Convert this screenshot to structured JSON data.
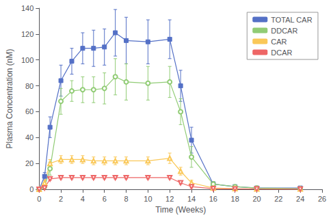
{
  "chart_data": {
    "type": "line",
    "xlabel": "Time (Weeks)",
    "ylabel": "Plasma Concentration (nM)",
    "xlim": [
      0,
      26
    ],
    "ylim": [
      0,
      140
    ],
    "xticks": [
      0,
      2,
      4,
      6,
      8,
      10,
      12,
      14,
      16,
      18,
      20,
      22,
      24,
      26
    ],
    "yticks": [
      0,
      20,
      40,
      60,
      80,
      100,
      120,
      140
    ],
    "grid": false,
    "legend": "upper right",
    "series": [
      {
        "name": "TOTAL CAR",
        "marker": "square",
        "line_style": "solid",
        "x": [
          0,
          0.5,
          1,
          2,
          3,
          4,
          5,
          6,
          7,
          8,
          10,
          12,
          13,
          14,
          16,
          18,
          20,
          24
        ],
        "values": [
          0,
          10,
          48,
          84,
          99,
          109,
          109,
          110,
          121,
          115,
          114,
          116,
          80,
          38,
          4,
          2,
          1,
          1
        ],
        "yerr": [
          0,
          3,
          8,
          12,
          10,
          12,
          14,
          14,
          18,
          18,
          17,
          15,
          12,
          10,
          2,
          1,
          1,
          0.5
        ]
      },
      {
        "name": "DDCAR",
        "marker": "open circle",
        "line_style": "solid",
        "x": [
          0,
          0.5,
          1,
          2,
          3,
          4,
          5,
          6,
          7,
          8,
          10,
          12,
          13,
          14,
          16,
          18,
          20,
          24
        ],
        "values": [
          0,
          2,
          16,
          68,
          76,
          77,
          77,
          78,
          87,
          83,
          82,
          83,
          60,
          25,
          4,
          2,
          1,
          0.5
        ],
        "yerr": [
          0,
          1,
          5,
          10,
          8,
          10,
          10,
          12,
          14,
          14,
          13,
          12,
          10,
          8,
          2,
          1,
          0.5,
          0.3
        ]
      },
      {
        "name": "CAR",
        "marker": "open triangle",
        "line_style": "solid",
        "x": [
          0,
          0.5,
          1,
          2,
          3,
          4,
          5,
          6,
          7,
          8,
          10,
          12,
          13,
          14,
          16,
          18,
          20,
          24
        ],
        "values": [
          0,
          5,
          20,
          23,
          23,
          23,
          22,
          22,
          22,
          22,
          22,
          24,
          14,
          5,
          1,
          0.5,
          0.3,
          0.2
        ],
        "yerr": [
          0,
          2,
          3,
          3,
          3,
          3,
          3,
          3,
          3,
          3,
          3,
          4,
          3,
          2,
          0.5,
          0.3,
          0.2,
          0.1
        ]
      },
      {
        "name": "DCAR",
        "marker": "open triangle-down",
        "line_style": "solid",
        "x": [
          0,
          0.5,
          1,
          2,
          3,
          4,
          5,
          6,
          7,
          8,
          10,
          12,
          13,
          14,
          16,
          18,
          20,
          24
        ],
        "values": [
          0,
          1,
          8,
          9,
          9,
          9,
          9,
          9,
          9,
          9,
          9,
          9,
          5,
          2,
          0.5,
          0.3,
          0.2,
          0.1
        ],
        "yerr": [
          0,
          0.5,
          1,
          1,
          1,
          1,
          1,
          1,
          1,
          1,
          1,
          1,
          1,
          1,
          0.3,
          0.2,
          0.1,
          0.1
        ]
      }
    ]
  }
}
